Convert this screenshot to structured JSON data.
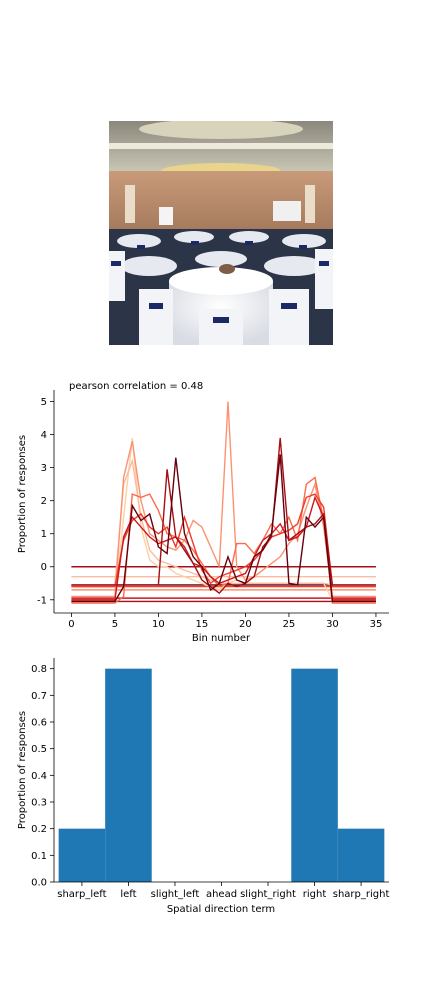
{
  "chart_data": [
    {
      "type": "line",
      "title": "pearson correlation = 0.48",
      "xlabel": "Bin number",
      "ylabel": "Proportion of responses",
      "xlim": [
        -2,
        36.5
      ],
      "ylim": [
        -1.4,
        5.35
      ],
      "xticks": [
        0,
        5,
        10,
        15,
        20,
        25,
        30,
        35
      ],
      "yticks": [
        -1,
        0,
        1,
        2,
        3,
        4,
        5
      ],
      "x": [
        0,
        1,
        2,
        3,
        4,
        5,
        6,
        7,
        8,
        9,
        10,
        11,
        12,
        13,
        14,
        15,
        16,
        17,
        18,
        19,
        20,
        21,
        22,
        23,
        24,
        25,
        26,
        27,
        28,
        29,
        30,
        31,
        32,
        33,
        34,
        35
      ],
      "series": [
        {
          "color": "#fdd0a2",
          "values": [
            -1,
            -1,
            -1,
            -1,
            -1,
            -1,
            1.5,
            3.9,
            1.2,
            0.2,
            0,
            0,
            -0.2,
            -0.3,
            -0.4,
            -0.5,
            -0.6,
            -0.7,
            -0.5,
            -0.4,
            -0.5,
            -0.5,
            -0.5,
            -0.5,
            -0.5,
            -0.5,
            -0.5,
            -0.5,
            -0.5,
            -0.5,
            -1,
            -1,
            -1,
            -1,
            -1,
            -1
          ]
        },
        {
          "color": "#fcbba1",
          "values": [
            -0.55,
            -0.55,
            -0.55,
            -0.55,
            -0.55,
            -0.55,
            2.5,
            3.2,
            1.5,
            0.5,
            0.2,
            0.1,
            0.0,
            -0.1,
            -0.2,
            -0.3,
            -0.4,
            -0.5,
            -0.5,
            -0.5,
            -0.5,
            -0.5,
            -0.5,
            -0.5,
            -0.5,
            -0.5,
            -0.5,
            -0.5,
            -0.5,
            -0.5,
            -0.55,
            -0.55,
            -0.55,
            -0.55,
            -0.55,
            -0.55
          ]
        },
        {
          "color": "#fc9272",
          "values": [
            -0.9,
            -0.9,
            -0.9,
            -0.9,
            -0.9,
            -0.9,
            2.7,
            3.8,
            2.0,
            1.0,
            0.8,
            0.6,
            0.5,
            0.8,
            1.4,
            1.2,
            0.6,
            0.0,
            5.0,
            0.0,
            -0.4,
            -0.3,
            -0.1,
            0.1,
            0.3,
            0.7,
            1.0,
            1.8,
            2.5,
            1.2,
            -0.9,
            -0.9,
            -0.9,
            -0.9,
            -0.9,
            -0.9
          ]
        },
        {
          "color": "#fb6a4a",
          "values": [
            -1.1,
            -1.1,
            -1.1,
            -1.1,
            -1.1,
            -1.1,
            -0.9,
            2.2,
            2.1,
            2.2,
            1.7,
            1.0,
            0.9,
            0.8,
            0.5,
            0.1,
            -0.3,
            -0.6,
            -0.5,
            0.7,
            0.7,
            0.4,
            0.8,
            1.3,
            1.0,
            1.5,
            0.8,
            2.5,
            2.7,
            1.4,
            -1.1,
            -1.1,
            -1.1,
            -1.1,
            -1.1,
            -1.1
          ]
        },
        {
          "color": "#ef3b2c",
          "values": [
            -0.6,
            -0.6,
            -0.6,
            -0.6,
            -0.6,
            -0.6,
            0.8,
            1.4,
            1.6,
            1.2,
            1.0,
            1.2,
            0.6,
            1.5,
            0.7,
            -0.1,
            -0.5,
            -0.3,
            -0.2,
            -0.1,
            0.0,
            0.2,
            0.5,
            0.9,
            1.0,
            1.1,
            1.3,
            2.1,
            2.2,
            1.8,
            -0.6,
            -0.6,
            -0.6,
            -0.6,
            -0.6,
            -0.6
          ]
        },
        {
          "color": "#cb181d",
          "values": [
            -1.0,
            -1.0,
            -1.0,
            -1.0,
            -1.0,
            -1.0,
            0.9,
            1.5,
            1.2,
            0.9,
            0.7,
            0.8,
            0.9,
            0.6,
            0.1,
            0.0,
            -0.3,
            -0.5,
            -0.4,
            -0.3,
            -0.2,
            0.3,
            0.8,
            1.0,
            1.3,
            0.8,
            0.9,
            1.2,
            2.1,
            1.5,
            -1.0,
            -1.0,
            -1.0,
            -1.0,
            -1.0,
            -1.0
          ]
        },
        {
          "color": "#a50f15",
          "values": [
            -0.55,
            -0.55,
            -0.55,
            -0.55,
            -0.55,
            -0.55,
            -0.55,
            -0.55,
            -0.55,
            -0.55,
            -0.55,
            2.95,
            0.9,
            0.5,
            0.1,
            -0.4,
            -0.6,
            -0.8,
            -0.5,
            -0.6,
            -0.5,
            -0.3,
            0.6,
            0.9,
            3.9,
            0.8,
            1.0,
            1.2,
            1.3,
            1.6,
            -0.55,
            -0.55,
            -0.55,
            -0.55,
            -0.55,
            -0.55
          ]
        },
        {
          "color": "#67000d",
          "values": [
            -1.05,
            -1.05,
            -1.05,
            -1.05,
            -1.05,
            -1.05,
            -0.6,
            1.85,
            1.4,
            1.6,
            0.6,
            0.4,
            3.3,
            1.0,
            0.3,
            0.0,
            -0.7,
            -0.5,
            0.3,
            -0.4,
            -0.5,
            0.3,
            0.5,
            1.0,
            3.4,
            -0.5,
            -0.55,
            1.5,
            1.2,
            1.5,
            -1.05,
            -1.05,
            -1.05,
            -1.05,
            -1.05,
            -1.05
          ]
        }
      ],
      "hlines": [
        {
          "y": 0,
          "color": "#a50f15"
        },
        {
          "y": -0.55,
          "color": "#67000d"
        },
        {
          "y": -0.6,
          "color": "#ef3b2c"
        },
        {
          "y": -0.7,
          "color": "#fc9272"
        },
        {
          "y": -0.95,
          "color": "#cb181d"
        },
        {
          "y": -1.05,
          "color": "#a50f15"
        },
        {
          "y": -0.3,
          "color": "#fcbba1"
        }
      ],
      "grid": false
    },
    {
      "type": "bar",
      "xlabel": "Spatial direction term",
      "ylabel": "Proportion of responses",
      "categories": [
        "sharp_left",
        "left",
        "slight_left",
        "ahead",
        "slight_right",
        "right",
        "sharp_right"
      ],
      "values": [
        0.2,
        0.8,
        0,
        0,
        0,
        0.8,
        0.2
      ],
      "ylim": [
        0,
        0.84
      ],
      "yticks": [
        0.0,
        0.1,
        0.2,
        0.3,
        0.4,
        0.5,
        0.6,
        0.7,
        0.8
      ],
      "color": "#1f77b4",
      "grid": false
    }
  ],
  "photo": {
    "description_icon": "banquet-hall-photo"
  }
}
